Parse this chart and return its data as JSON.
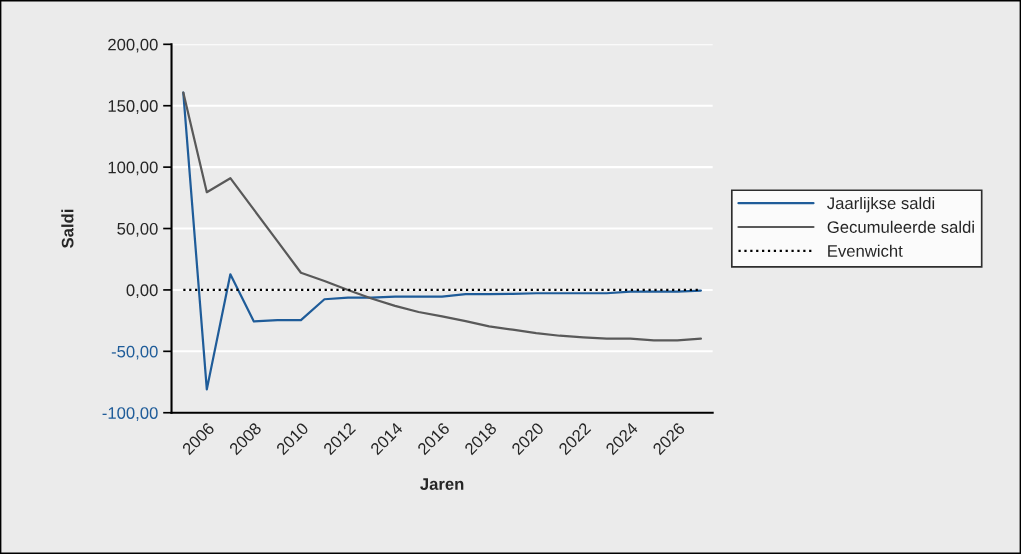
{
  "chart_data": {
    "type": "line",
    "xlabel": "Jaren",
    "ylabel": "Saldi",
    "categories": [
      null,
      "2006",
      null,
      "2008",
      null,
      "2010",
      null,
      "2012",
      null,
      "2014",
      null,
      "2016",
      null,
      "2018",
      null,
      "2020",
      null,
      "2022",
      null,
      "2024",
      null,
      "2026",
      null
    ],
    "series": [
      {
        "name": "Jaarlijkse saldi",
        "color": "#1f5c99",
        "values": [
          160.7,
          -81,
          12.7,
          -25.7,
          -24.6,
          -24.6,
          -7.6,
          -6.2,
          -6.2,
          -5.4,
          -5.4,
          -5.4,
          -3.5,
          -3.5,
          -3.2,
          -2.7,
          -2.7,
          -2.7,
          -2.7,
          -1.4,
          -1.4,
          -1.4,
          -0.5
        ]
      },
      {
        "name": "Gecumuleerde saldi",
        "color": "#595959",
        "values": [
          160.7,
          79.6,
          91,
          65.4,
          39.7,
          14,
          7.3,
          0,
          -7,
          -13,
          -18,
          -21.6,
          -25.4,
          -29.7,
          -32.4,
          -35.1,
          -37.3,
          -38.6,
          -39.7,
          -39.7,
          -41,
          -41,
          -39.7
        ]
      },
      {
        "name": "Evenwicht",
        "color": "#000000",
        "line_style": "dotted",
        "values": [
          0,
          0,
          0,
          0,
          0,
          0,
          0,
          0,
          0,
          0,
          0,
          0,
          0,
          0,
          0,
          0,
          0,
          0,
          0,
          0,
          0,
          0,
          0
        ]
      }
    ],
    "ylim": [
      -100,
      200
    ],
    "yticks": [
      {
        "value": 200,
        "label": "200,00"
      },
      {
        "value": 150,
        "label": "150,00"
      },
      {
        "value": 100,
        "label": "100,00"
      },
      {
        "value": 50,
        "label": "50,00"
      },
      {
        "value": 0,
        "label": "0,00"
      },
      {
        "value": -50,
        "label": "-50,00"
      },
      {
        "value": -100,
        "label": "-100,00"
      }
    ],
    "grid": "y",
    "legend": "right",
    "marker": "none",
    "line_style": "solid"
  }
}
